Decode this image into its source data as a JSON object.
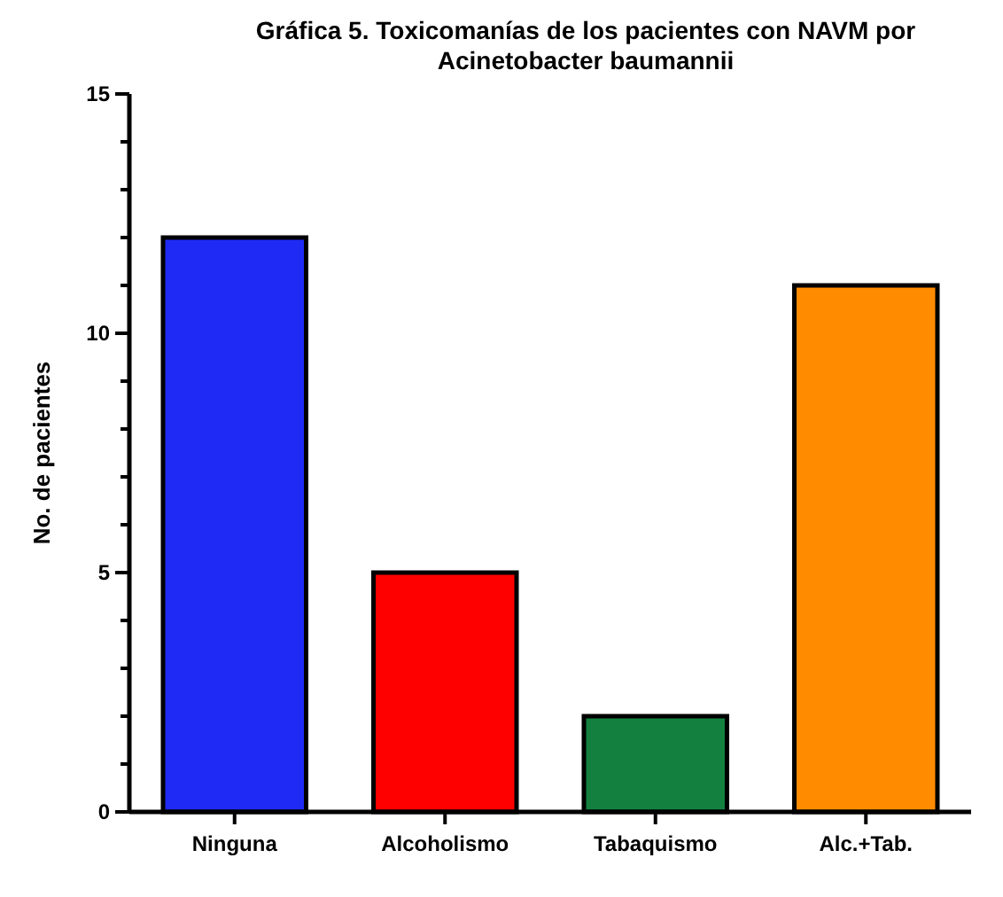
{
  "chart_data": {
    "type": "bar",
    "title": "Gráfica 5. Toxicomanías de los pacientes con NAVM por Acinetobacter baumannii",
    "ylabel": "No. de pacientes",
    "categories": [
      "Ninguna",
      "Alcoholismo",
      "Tabaquismo",
      "Alc.+Tab."
    ],
    "values": [
      12,
      5,
      2,
      11
    ],
    "colors": [
      "#1f2bf5",
      "#ff0000",
      "#138040",
      "#ff8c00"
    ],
    "ylim": [
      0,
      15
    ],
    "yticks": [
      0,
      {
        "value": 1,
        "label": null
      },
      {
        "value": 2,
        "label": null
      },
      {
        "value": 3,
        "label": null
      },
      {
        "value": 4,
        "label": null
      },
      5,
      {
        "value": 6,
        "label": null
      },
      {
        "value": 7,
        "label": null
      },
      {
        "value": 8,
        "label": null
      },
      {
        "value": 9,
        "label": null
      },
      10,
      {
        "value": 11,
        "label": null
      },
      {
        "value": 12,
        "label": null
      },
      {
        "value": 13,
        "label": null
      },
      {
        "value": 14,
        "label": null
      },
      15
    ],
    "grid": false
  }
}
